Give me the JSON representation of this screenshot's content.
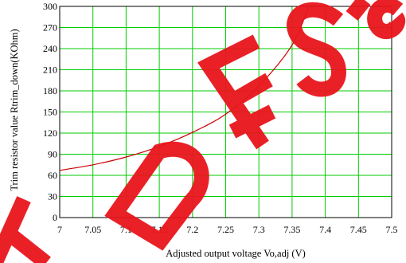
{
  "chart_data": {
    "type": "line",
    "title": "",
    "xlabel": "Adjusted output voltage Vo,adj (V)",
    "ylabel": "Trim resistor value Rtrim_down(KOhm)",
    "xlim": [
      7.0,
      7.5
    ],
    "ylim": [
      0,
      300
    ],
    "xticks": [
      "7",
      "7.05",
      "7.1",
      "7.15",
      "7.2",
      "7.25",
      "7.3",
      "7.35",
      "7.4",
      "7.45",
      "7.5"
    ],
    "yticks": [
      "0",
      "30",
      "60",
      "90",
      "120",
      "150",
      "180",
      "210",
      "240",
      "270",
      "300"
    ],
    "grid": true,
    "grid_color": "#00cc00",
    "series": [
      {
        "color": "#cc0000",
        "x": [
          7.0,
          7.05,
          7.1,
          7.15,
          7.2,
          7.25,
          7.3,
          7.35,
          7.375
        ],
        "y": [
          67,
          75,
          86,
          101,
          121,
          147,
          187,
          245,
          300
        ]
      }
    ],
    "watermark": {
      "text": "A DESIGN",
      "color": "#e8151b"
    }
  }
}
